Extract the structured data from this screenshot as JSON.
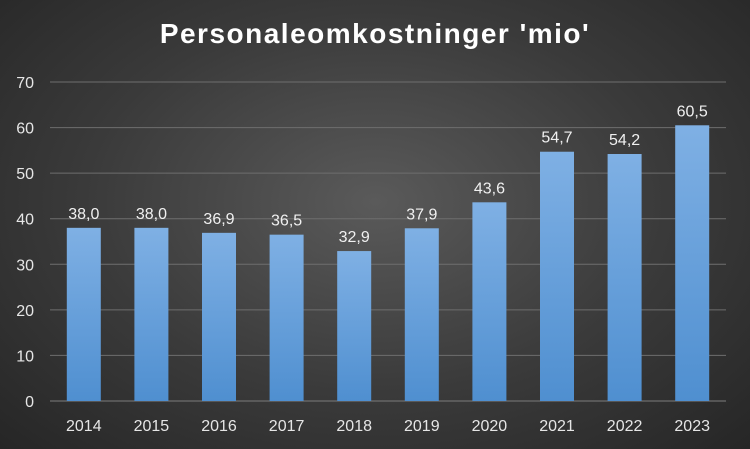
{
  "chart_data": {
    "type": "bar",
    "title": "Personaleomkostninger 'mio'",
    "categories": [
      "2014",
      "2015",
      "2016",
      "2017",
      "2018",
      "2019",
      "2020",
      "2021",
      "2022",
      "2023"
    ],
    "values": [
      38.0,
      38.0,
      36.9,
      36.5,
      32.9,
      37.9,
      43.6,
      54.7,
      54.2,
      60.5
    ],
    "data_labels": [
      "38,0",
      "38,0",
      "36,9",
      "36,5",
      "32,9",
      "37,9",
      "43,6",
      "54,7",
      "54,2",
      "60,5"
    ],
    "y_ticks": [
      "0",
      "10",
      "20",
      "30",
      "40",
      "50",
      "60",
      "70"
    ],
    "ylim": [
      0,
      70
    ],
    "grid": true,
    "legend": "none",
    "colors": {
      "bar_top": "#7fb0e4",
      "bar_bottom": "#4f8fd0",
      "gridline": "#6e6e6e",
      "text": "#e6e6e6"
    }
  }
}
